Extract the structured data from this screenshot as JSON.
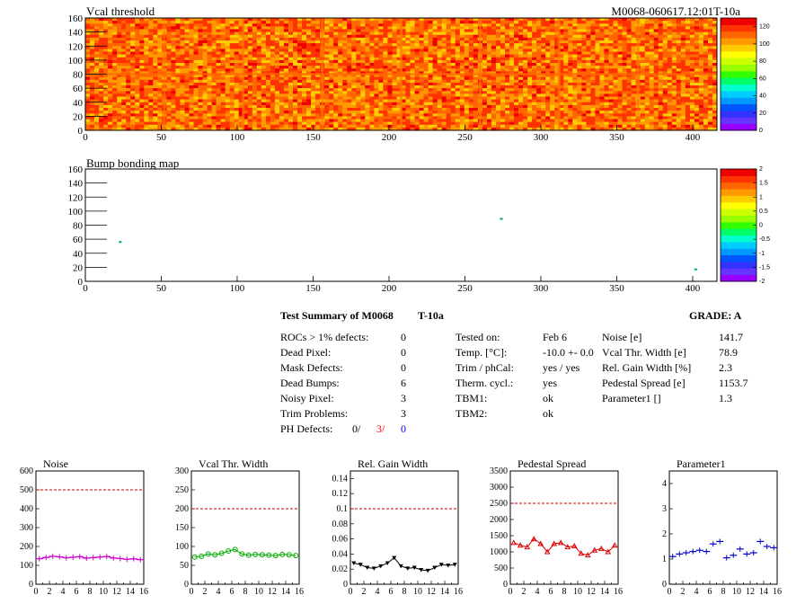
{
  "top_map": {
    "title": "Vcal threshold",
    "module_label": "M0068-060617.12:01T-10a"
  },
  "bump_map": {
    "title": "Bump bonding map"
  },
  "summary": {
    "title": "Test Summary of M0068",
    "temperature_label": "T-10a",
    "grade": "GRADE:  A",
    "defects": [
      {
        "label": "ROCs > 1% defects:",
        "value": "0"
      },
      {
        "label": "Dead Pixel:",
        "value": "0"
      },
      {
        "label": "Mask Defects:",
        "value": "0"
      },
      {
        "label": "Dead Bumps:",
        "value": "6"
      },
      {
        "label": "Noisy Pixel:",
        "value": "3"
      },
      {
        "label": "Trim Problems:",
        "value": "3"
      }
    ],
    "ph_defects": {
      "label": "PH Defects:",
      "v1": "0/",
      "v2": "3/",
      "v3": "0",
      "v2_color": "#ff0000",
      "v3_color": "#0000ff"
    },
    "conditions": [
      {
        "label": "Tested on:",
        "value": "Feb 6"
      },
      {
        "label": "Temp. [°C]:",
        "value": "-10.0 +- 0.0"
      },
      {
        "label": "Trim / phCal:",
        "value": "yes / yes"
      },
      {
        "label": "Therm. cycl.:",
        "value": "yes"
      },
      {
        "label": "TBM1:",
        "value": "ok"
      },
      {
        "label": "TBM2:",
        "value": "ok"
      }
    ],
    "results": [
      {
        "label": "Noise [e]",
        "value": "141.7"
      },
      {
        "label": "Vcal Thr. Width [e]",
        "value": "78.9"
      },
      {
        "label": "Rel. Gain Width [%]",
        "value": "2.3"
      },
      {
        "label": "Pedestal Spread [e]",
        "value": "1153.7"
      },
      {
        "label": "Parameter1 []",
        "value": "1.3"
      }
    ]
  },
  "chart_data": [
    {
      "type": "heatmap",
      "title": "Vcal threshold",
      "xlim": [
        0,
        416
      ],
      "ylim": [
        0,
        160
      ],
      "x_ticks": [
        0,
        50,
        100,
        150,
        200,
        250,
        300,
        350,
        400
      ],
      "y_ticks": [
        0,
        20,
        40,
        60,
        80,
        100,
        120,
        140,
        160
      ],
      "colorbar": {
        "min": 0,
        "max": 130,
        "ticks": [
          0,
          20,
          40,
          60,
          80,
          100,
          120
        ]
      },
      "typical_value": 110,
      "roc_columns": 8,
      "roc_rows": 2
    },
    {
      "type": "heatmap",
      "title": "Bump bonding map",
      "xlim": [
        0,
        416
      ],
      "ylim": [
        0,
        160
      ],
      "x_ticks": [
        0,
        50,
        100,
        150,
        200,
        250,
        300,
        350,
        400
      ],
      "y_ticks": [
        0,
        20,
        40,
        60,
        80,
        100,
        120,
        140,
        160
      ],
      "colorbar": {
        "min": -2,
        "max": 2,
        "ticks": [
          "-2",
          "-1.5",
          "-1",
          "-0.5",
          "0",
          "0.5",
          "1",
          "1.5",
          "2"
        ]
      },
      "points": [
        [
          23,
          56
        ],
        [
          274,
          89
        ],
        [
          402,
          17
        ]
      ]
    },
    {
      "type": "line",
      "title": "Noise",
      "x": [
        0,
        1,
        2,
        3,
        4,
        5,
        6,
        7,
        8,
        9,
        10,
        11,
        12,
        13,
        14,
        15
      ],
      "values": [
        135,
        142,
        148,
        145,
        140,
        143,
        146,
        138,
        141,
        144,
        147,
        139,
        136,
        132,
        135,
        130
      ],
      "ylim": [
        0,
        600
      ],
      "y_ticks": [
        0,
        100,
        200,
        300,
        400,
        500,
        600
      ],
      "threshold": 500,
      "color": "#cc00cc",
      "marker": "cross"
    },
    {
      "type": "line",
      "title": "Vcal Thr. Width",
      "x": [
        0,
        1,
        2,
        3,
        4,
        5,
        6,
        7,
        8,
        9,
        10,
        11,
        12,
        13,
        14,
        15
      ],
      "values": [
        72,
        74,
        80,
        78,
        82,
        88,
        92,
        80,
        77,
        79,
        78,
        77,
        76,
        79,
        78,
        76
      ],
      "ylim": [
        0,
        300
      ],
      "y_ticks": [
        0,
        50,
        100,
        150,
        200,
        250,
        300
      ],
      "threshold": 200,
      "color": "#00aa00",
      "marker": "circle"
    },
    {
      "type": "line",
      "title": "Rel. Gain Width",
      "x": [
        0,
        1,
        2,
        3,
        4,
        5,
        6,
        7,
        8,
        9,
        10,
        11,
        12,
        13,
        14,
        15
      ],
      "values": [
        0.028,
        0.026,
        0.022,
        0.021,
        0.024,
        0.028,
        0.035,
        0.024,
        0.021,
        0.022,
        0.019,
        0.018,
        0.022,
        0.026,
        0.025,
        0.026
      ],
      "ylim": [
        0,
        0.15
      ],
      "y_ticks": [
        "0",
        "0.02",
        "0.04",
        "0.06",
        "0.08",
        "0.1",
        "0.12",
        "0.14"
      ],
      "y_tick_values": [
        0,
        0.02,
        0.04,
        0.06,
        0.08,
        0.1,
        0.12,
        0.14
      ],
      "threshold": 0.1,
      "color": "#000000",
      "marker": "triangle-down"
    },
    {
      "type": "line",
      "title": "Pedestal Spread",
      "x": [
        0,
        1,
        2,
        3,
        4,
        5,
        6,
        7,
        8,
        9,
        10,
        11,
        12,
        13,
        14,
        15
      ],
      "values": [
        1280,
        1200,
        1150,
        1400,
        1250,
        1000,
        1250,
        1280,
        1150,
        1180,
        950,
        900,
        1050,
        1100,
        1000,
        1200
      ],
      "ylim": [
        0,
        3500
      ],
      "y_ticks": [
        0,
        500,
        1000,
        1500,
        2000,
        2500,
        3000,
        3500
      ],
      "threshold": 2500,
      "color": "#dd0000",
      "marker": "triangle-up"
    },
    {
      "type": "scatter",
      "title": "Parameter1",
      "x": [
        0,
        1,
        2,
        3,
        4,
        5,
        6,
        7,
        8,
        9,
        10,
        11,
        12,
        13,
        14,
        15
      ],
      "values": [
        1.1,
        1.2,
        1.25,
        1.3,
        1.35,
        1.3,
        1.6,
        1.7,
        1.05,
        1.15,
        1.4,
        1.2,
        1.25,
        1.7,
        1.5,
        1.45
      ],
      "ylim": [
        0,
        4.5
      ],
      "y_ticks": [
        0,
        1,
        2,
        3,
        4
      ],
      "threshold": null,
      "color": "#0000cc",
      "marker": "cross"
    }
  ]
}
